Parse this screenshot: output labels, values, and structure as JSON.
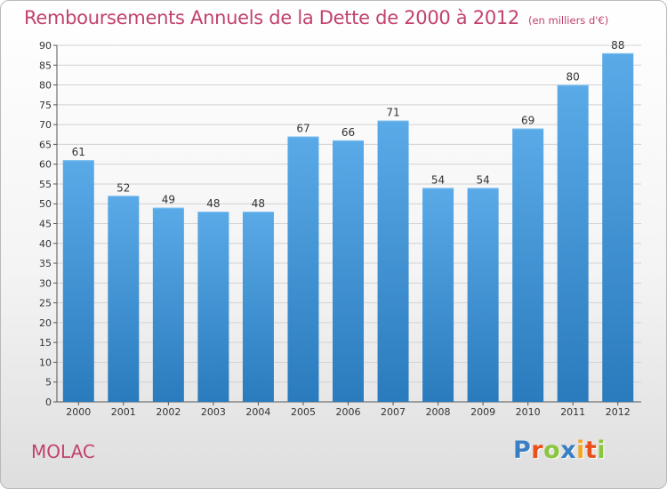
{
  "title": "Remboursements Annuels de la Dette de 2000 à 2012",
  "unit": "(en milliers d'€)",
  "commune": "MOLAC",
  "logo": {
    "text": "Proxiti",
    "letters": [
      "P",
      "r",
      "o",
      "x",
      "i",
      "t",
      "i"
    ],
    "colors": [
      "#3a7fc4",
      "#e94f1b",
      "#8cc63e",
      "#3a7fc4",
      "#f5a623",
      "#e94f1b",
      "#8cc63e"
    ]
  },
  "colors": {
    "bar_top": "#5aaae8",
    "bar_bottom": "#2a7bbd",
    "title": "#c2416e",
    "grid": "#d2d2d2"
  },
  "chart_data": {
    "type": "bar",
    "title": "Remboursements Annuels de la Dette de 2000 à 2012",
    "subtitle": "(en milliers d'€)",
    "xlabel": "",
    "ylabel": "",
    "categories": [
      "2000",
      "2001",
      "2002",
      "2003",
      "2004",
      "2005",
      "2006",
      "2007",
      "2008",
      "2009",
      "2010",
      "2011",
      "2012"
    ],
    "values": [
      61,
      52,
      49,
      48,
      48,
      67,
      66,
      71,
      54,
      54,
      69,
      80,
      88
    ],
    "ylim": [
      0,
      90
    ],
    "yticks": [
      0,
      5,
      10,
      15,
      20,
      25,
      30,
      35,
      40,
      45,
      50,
      55,
      60,
      65,
      70,
      75,
      80,
      85,
      90
    ],
    "grid": true,
    "legend": "none",
    "data_labels": true
  }
}
